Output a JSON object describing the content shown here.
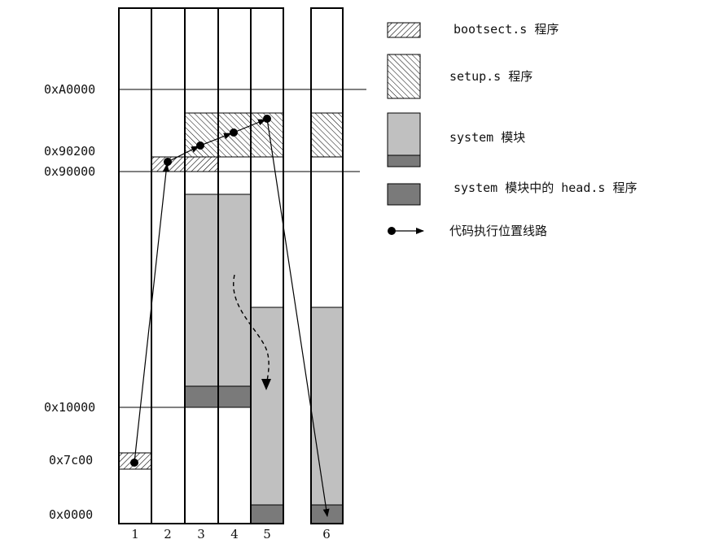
{
  "addresses": {
    "a0000": "0xA0000",
    "a90200": "0x90200",
    "a90000": "0x90000",
    "a10000": "0x10000",
    "a7c00": "0x7c00",
    "a0": "0x0000"
  },
  "columns": [
    "1",
    "2",
    "3",
    "4",
    "5",
    "6"
  ],
  "legend": {
    "bootsect": "bootsect.s 程序",
    "setup": "setup.s 程序",
    "system": "system 模块",
    "head": "system 模块中的 head.s 程序",
    "path": "代码执行位置线路"
  },
  "colors": {
    "system_fill": "#c0c0c0",
    "head_fill": "#7a7a7a",
    "line": "#000000"
  }
}
